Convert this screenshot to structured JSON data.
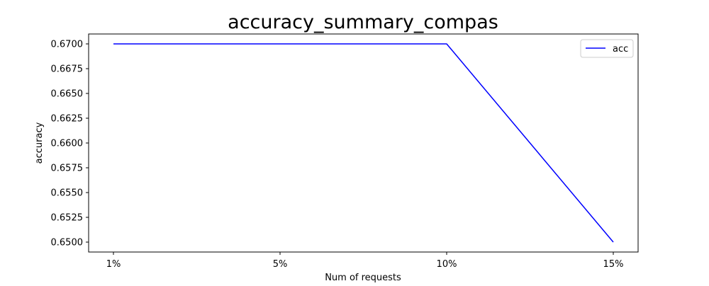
{
  "chart_data": {
    "type": "line",
    "title": "accuracy_summary_compas",
    "xlabel": "Num of requests",
    "ylabel": "accuracy",
    "categories": [
      "1%",
      "5%",
      "10%",
      "15%"
    ],
    "series": [
      {
        "name": "acc",
        "color": "#0000ff",
        "values": [
          0.67,
          0.67,
          0.67,
          0.65
        ]
      }
    ],
    "ylim": [
      0.649,
      0.671
    ],
    "yticks": [
      0.65,
      0.6525,
      0.655,
      0.6575,
      0.66,
      0.6625,
      0.665,
      0.6675,
      0.67
    ],
    "ytick_labels": [
      "0.6500",
      "0.6525",
      "0.6550",
      "0.6575",
      "0.6600",
      "0.6625",
      "0.6650",
      "0.6675",
      "0.6700"
    ],
    "grid": false,
    "legend_position": "top-right"
  }
}
